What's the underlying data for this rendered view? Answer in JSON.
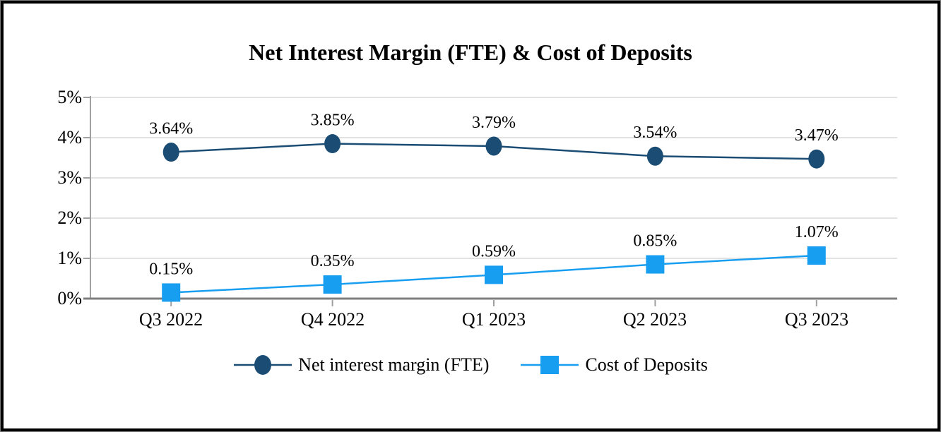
{
  "chart_data": {
    "type": "line",
    "title": "Net Interest Margin (FTE) & Cost of Deposits",
    "categories": [
      "Q3 2022",
      "Q4 2022",
      "Q1 2023",
      "Q2 2023",
      "Q3 2023"
    ],
    "series": [
      {
        "name": "Net interest margin (FTE)",
        "marker": "circle",
        "color": "#1B4D74",
        "values": [
          3.64,
          3.85,
          3.79,
          3.54,
          3.47
        ],
        "labels": [
          "3.64%",
          "3.85%",
          "3.79%",
          "3.54%",
          "3.47%"
        ]
      },
      {
        "name": "Cost of Deposits",
        "marker": "square",
        "color": "#189EF0",
        "values": [
          0.15,
          0.35,
          0.59,
          0.85,
          1.07
        ],
        "labels": [
          "0.15%",
          "0.35%",
          "0.59%",
          "0.85%",
          "1.07%"
        ]
      }
    ],
    "y_axis": {
      "min": 0,
      "max": 5,
      "tick_labels": [
        "0%",
        "1%",
        "2%",
        "3%",
        "4%",
        "5%"
      ]
    },
    "xlabel": "",
    "ylabel": "",
    "grid": true,
    "legend_position": "bottom",
    "colors": {
      "gridline": "#D9D9D9",
      "axis": "#A0A0A0",
      "axis_bottom": "#7F7F7F",
      "text": "#000000"
    }
  }
}
